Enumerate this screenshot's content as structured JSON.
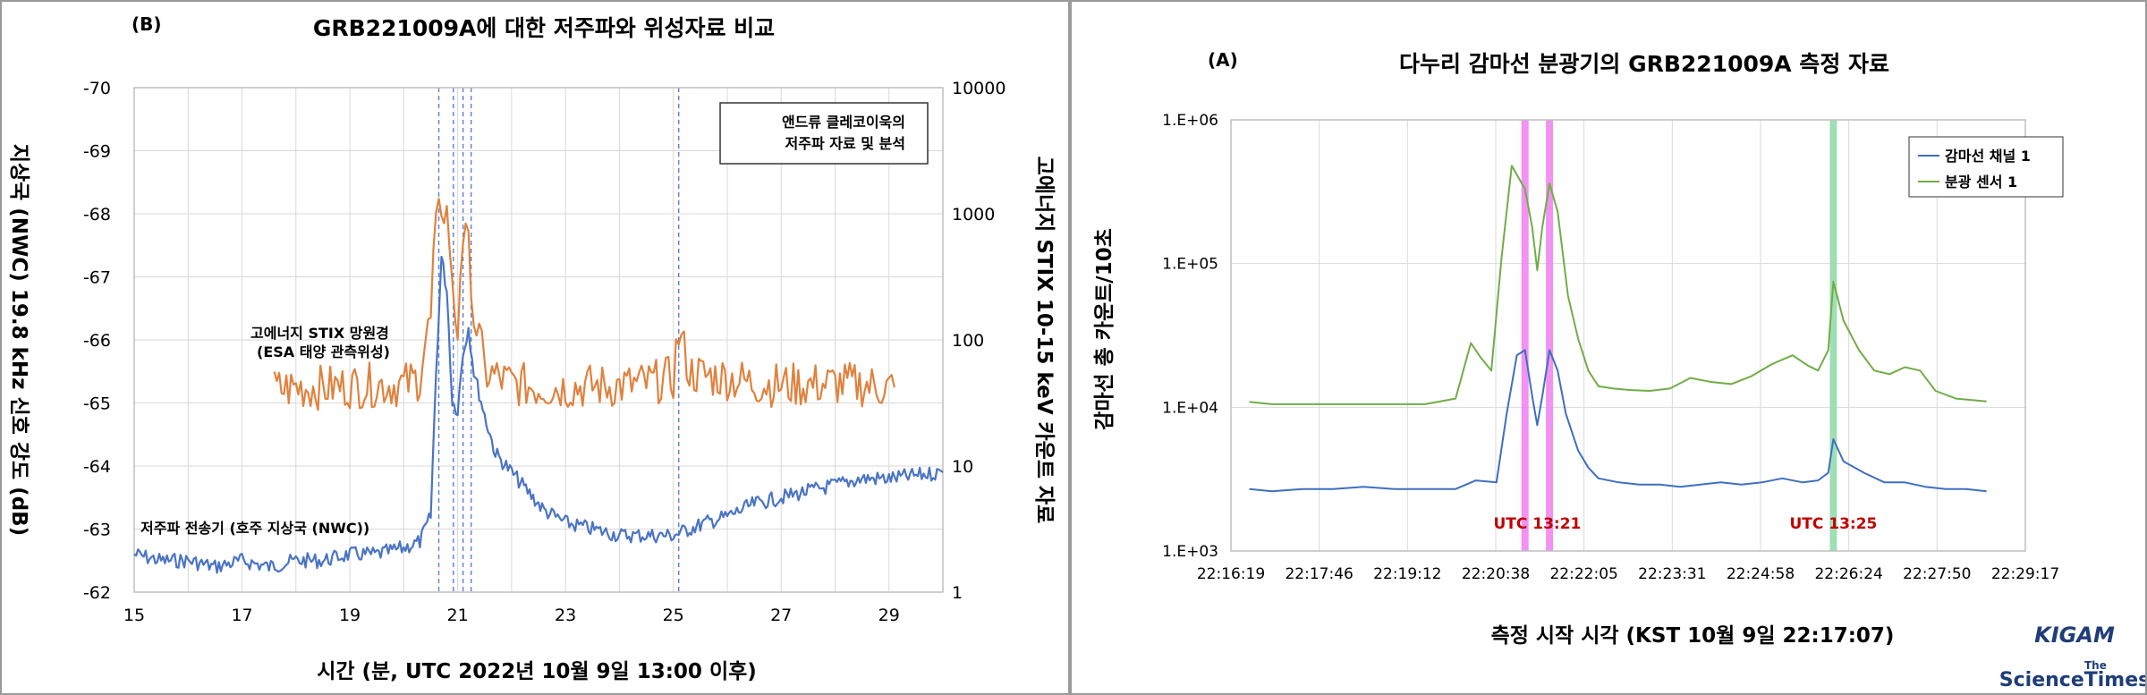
{
  "colors": {
    "vlf": "#4a74c4",
    "stix": "#e0813d",
    "gamma": "#3f6fc0",
    "spec": "#70ad47",
    "band_pink": "#f07ff0",
    "band_green": "#8fd8a8",
    "utc_red": "#c00000",
    "grid": "#d9d9d9"
  },
  "left_panel": {
    "label": "(B)",
    "title": "GRB221009A에 대한 저주파와 위성자료 비교",
    "xlabel": "시간 (분, UTC 2022년 10월 9일 13:00 이후)",
    "ylabel_left": "지상국 (NWC) 19.8 kHz 신호 강도 (dB)",
    "ylabel_right": "고에너지 STIX 10-15 keV 카운트 자료",
    "legend_box": [
      "앤드류 클레코이욱의",
      "저주파 자료 및 분석"
    ],
    "annotations": {
      "stix_label": [
        "고에너지 STIX 망원경",
        "(ESA 태양 관측위성)"
      ],
      "vlf_label": "저주파 전송기 (호주 지상국 (NWC))"
    },
    "x_ticks": [
      "15",
      "17",
      "19",
      "21",
      "23",
      "25",
      "27",
      "29"
    ],
    "y_left_ticks": [
      "-70",
      "-69",
      "-68",
      "-67",
      "-66",
      "-65",
      "-64",
      "-63",
      "-62"
    ],
    "y_right_ticks": [
      "10000",
      "1000",
      "100",
      "10",
      "1"
    ]
  },
  "right_panel": {
    "label": "(A)",
    "title": "다누리 감마선 분광기의 GRB221009A 측정 자료",
    "xlabel": "측정 시작 시각 (KST 10월 9일 22:17:07)",
    "ylabel": "감마선 총 카운트/10초",
    "legend": [
      "감마선 채널 1",
      "분광 센서 1"
    ],
    "x_ticks": [
      "22:16:19",
      "22:17:46",
      "22:19:12",
      "22:20:38",
      "22:22:05",
      "22:23:31",
      "22:24:58",
      "22:26:24",
      "22:27:50",
      "22:29:17"
    ],
    "y_ticks": [
      "1.E+06",
      "1.E+05",
      "1.E+04",
      "1.E+03"
    ],
    "band_labels": [
      "UTC 13:21",
      "UTC 13:25"
    ]
  },
  "logos": {
    "kigam": "KIGAM",
    "science_times_the": "The",
    "science_times": "ScienceTimes"
  },
  "chart_data": [
    {
      "type": "line",
      "title": "GRB221009A에 대한 저주파와 위성자료 비교",
      "xlabel": "시간 (분, UTC 2022년 10월 9일 13:00 이후)",
      "ylabel": "지상국 (NWC) 19.8 kHz 신호 강도 (dB)",
      "y2label": "고에너지 STIX 10-15 keV 카운트 자료",
      "xlim": [
        15,
        30
      ],
      "ylim": [
        -62,
        -70
      ],
      "y_inverted": true,
      "y2lim": [
        1,
        10000
      ],
      "y2_scale": "log",
      "grid": true,
      "vlines_x": [
        20.65,
        20.92,
        21.1,
        21.25,
        25.1
      ],
      "series": [
        {
          "name": "저주파 전송기 (호주 지상국 (NWC))",
          "axis": "left",
          "x": [
            15.0,
            15.5,
            16.0,
            16.5,
            17.0,
            17.5,
            18.0,
            18.5,
            19.0,
            19.5,
            20.0,
            20.3,
            20.5,
            20.6,
            20.7,
            20.8,
            20.9,
            21.0,
            21.1,
            21.2,
            21.3,
            21.5,
            21.7,
            22.0,
            22.3,
            22.6,
            23.0,
            23.5,
            24.0,
            24.5,
            25.0,
            25.3,
            25.6,
            26.0,
            26.5,
            27.0,
            27.5,
            28.0,
            28.5,
            29.0,
            29.5,
            30.0
          ],
          "y": [
            -62.6,
            -62.5,
            -62.5,
            -62.4,
            -62.5,
            -62.4,
            -62.5,
            -62.5,
            -62.6,
            -62.6,
            -62.7,
            -62.8,
            -63.2,
            -65.5,
            -67.3,
            -66.8,
            -65.0,
            -64.9,
            -65.8,
            -66.2,
            -65.5,
            -64.8,
            -64.2,
            -63.9,
            -63.6,
            -63.3,
            -63.1,
            -63.0,
            -62.9,
            -62.9,
            -62.9,
            -63.0,
            -63.1,
            -63.2,
            -63.4,
            -63.5,
            -63.6,
            -63.7,
            -63.8,
            -63.8,
            -63.85,
            -63.9
          ]
        },
        {
          "name": "고에너지 STIX 망원경 (ESA 태양 관측위성)",
          "axis": "right",
          "x": [
            17.6,
            18.0,
            18.5,
            19.0,
            19.5,
            20.0,
            20.3,
            20.5,
            20.6,
            20.7,
            20.8,
            20.9,
            21.0,
            21.1,
            21.2,
            21.3,
            21.5,
            22.0,
            22.5,
            23.0,
            23.5,
            24.0,
            24.5,
            25.0,
            25.1,
            25.3,
            25.6,
            26.0,
            26.5,
            27.0,
            27.5,
            28.0,
            28.5,
            29.0,
            29.1
          ],
          "y": [
            40,
            42,
            42,
            43,
            44,
            44,
            50,
            140,
            700,
            1200,
            1000,
            230,
            110,
            680,
            500,
            150,
            55,
            45,
            42,
            42,
            43,
            43,
            45,
            50,
            110,
            55,
            52,
            50,
            45,
            44,
            44,
            45,
            44,
            42,
            42
          ]
        }
      ]
    },
    {
      "type": "line",
      "title": "다누리 감마선 분광기의 GRB221009A 측정 자료",
      "xlabel": "측정 시작 시각 (KST 10월 9일 22:17:07)",
      "ylabel": "감마선 총 카운트/10초",
      "x_categories": [
        "22:16:19",
        "22:17:46",
        "22:19:12",
        "22:20:38",
        "22:22:05",
        "22:23:31",
        "22:24:58",
        "22:26:24",
        "22:27:50",
        "22:29:17"
      ],
      "x_unit": "seconds since 22:16:19",
      "xlim": [
        0,
        778
      ],
      "ylim": [
        1000,
        1000000
      ],
      "y_scale": "log",
      "grid": true,
      "legend": "top-right",
      "highlight_bands": [
        {
          "x": 288,
          "label": "UTC 13:21",
          "color": "pink"
        },
        {
          "x": 312,
          "label": "",
          "color": "pink"
        },
        {
          "x": 590,
          "label": "UTC 13:25",
          "color": "green"
        }
      ],
      "series": [
        {
          "name": "감마선 채널 1",
          "x": [
            18,
            40,
            70,
            100,
            130,
            160,
            190,
            220,
            240,
            260,
            270,
            280,
            288,
            295,
            300,
            305,
            312,
            320,
            328,
            340,
            350,
            360,
            380,
            400,
            420,
            440,
            460,
            480,
            500,
            520,
            540,
            560,
            575,
            585,
            590,
            600,
            620,
            640,
            660,
            680,
            700,
            720,
            740
          ],
          "y": [
            2700,
            2600,
            2700,
            2700,
            2800,
            2700,
            2700,
            2700,
            3100,
            3000,
            9000,
            23000,
            25000,
            12000,
            7500,
            12000,
            25000,
            18000,
            9000,
            5000,
            3800,
            3200,
            3000,
            2900,
            2900,
            2800,
            2900,
            3000,
            2900,
            3000,
            3200,
            3000,
            3100,
            3500,
            6000,
            4200,
            3500,
            3000,
            3000,
            2800,
            2700,
            2700,
            2600
          ]
        },
        {
          "name": "분광 센서 1",
          "x": [
            18,
            40,
            70,
            100,
            130,
            160,
            190,
            220,
            235,
            245,
            255,
            265,
            275,
            288,
            295,
            300,
            305,
            312,
            320,
            330,
            340,
            350,
            360,
            375,
            390,
            410,
            430,
            450,
            470,
            490,
            510,
            530,
            550,
            565,
            575,
            585,
            590,
            600,
            615,
            630,
            645,
            660,
            675,
            690,
            710,
            740
          ],
          "y": [
            10900,
            10500,
            10500,
            10500,
            10500,
            10500,
            10500,
            11500,
            28000,
            22000,
            18000,
            110000,
            480000,
            330000,
            180000,
            90000,
            180000,
            360000,
            230000,
            60000,
            30000,
            18000,
            14000,
            13500,
            13200,
            13000,
            13500,
            16000,
            15000,
            14500,
            16500,
            20000,
            23000,
            19500,
            18000,
            25000,
            75000,
            40000,
            25000,
            18000,
            17000,
            19000,
            18000,
            13000,
            11500,
            11000
          ]
        }
      ]
    }
  ]
}
